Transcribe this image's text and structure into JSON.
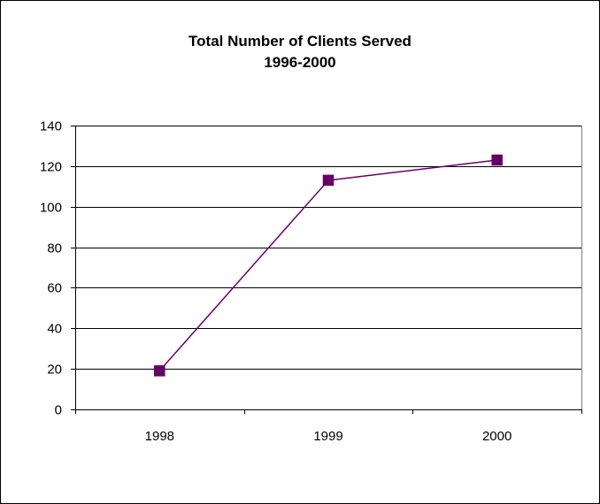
{
  "chart_data": {
    "type": "line",
    "title": "Total Number of Clients Served",
    "subtitle": "1996-2000",
    "xlabel": "",
    "ylabel": "",
    "categories": [
      "1998",
      "1999",
      "2000"
    ],
    "series": [
      {
        "values": [
          19,
          113,
          123
        ]
      }
    ],
    "ylim": [
      0,
      140
    ],
    "yticks": [
      0,
      20,
      40,
      60,
      80,
      100,
      120,
      140
    ],
    "grid": "horizontal",
    "legend": "none",
    "colors": {
      "line": "#660066",
      "marker": "#660066",
      "grid": "#000000",
      "axis": "#000000"
    }
  }
}
